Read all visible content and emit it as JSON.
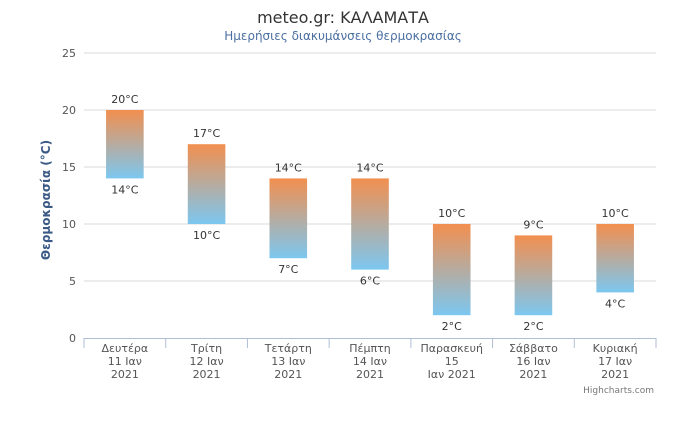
{
  "chart_data": {
    "type": "bar",
    "subtype": "columnrange",
    "title": "meteo.gr: ΚΑΛΑΜΑΤΑ",
    "subtitle": "Ημερήσιες διακυμάνσεις θερμοκρασίας",
    "ylabel": "Θερμοκρασία (°C)",
    "xlabel": "",
    "ylim": [
      0,
      25
    ],
    "yticks": [
      "0",
      "5",
      "10",
      "15",
      "20",
      "25"
    ],
    "grid": true,
    "unit": "°C",
    "categories": [
      [
        "Δευτέρα",
        "11 Ιαν",
        "2021"
      ],
      [
        "Τρίτη",
        "12 Ιαν",
        "2021"
      ],
      [
        "Τετάρτη",
        "13 Ιαν",
        "2021"
      ],
      [
        "Πέμπτη",
        "14 Ιαν",
        "2021"
      ],
      [
        "Παρασκευή",
        "15",
        "Ιαν 2021"
      ],
      [
        "Σάββατο",
        "16 Ιαν",
        "2021"
      ],
      [
        "Κυριακή",
        "17 Ιαν",
        "2021"
      ]
    ],
    "series": [
      {
        "low": [
          14,
          10,
          7,
          6,
          2,
          2,
          4
        ],
        "high": [
          20,
          17,
          14,
          14,
          10,
          9,
          10
        ]
      }
    ],
    "colors": {
      "high": "#f28f4f",
      "low": "#7cc7f0",
      "grid": "#d8d8d8",
      "axis": "#b0bed4"
    },
    "credit": "Highcharts.com"
  }
}
